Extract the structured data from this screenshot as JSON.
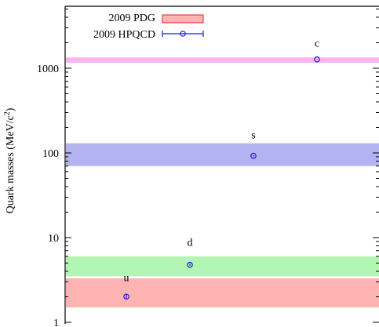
{
  "chart_data": {
    "type": "scatter",
    "title": "",
    "ylabel": "Quark masses (MeV/c²)",
    "xlabel": "",
    "yscale": "log",
    "ylim": [
      1,
      5000
    ],
    "yticks": [
      1,
      10,
      100,
      1000
    ],
    "ytick_labels": [
      "1",
      "10",
      "100",
      "1000"
    ],
    "grid": false,
    "legend_position": "top-left",
    "legend": [
      {
        "label": "2009 PDG",
        "kind": "band"
      },
      {
        "label": "2009 HPQCD",
        "kind": "point-with-errorbar"
      }
    ],
    "colors": {
      "u": "#ffb3b3",
      "d": "#b3f5b3",
      "s": "#b3b3f2",
      "c": "#f7b3f2",
      "point": "#1a1ad9",
      "legend_band_fill": "#ffb3b3",
      "legend_band_stroke": "#e02020"
    },
    "pdg_bands": [
      {
        "quark": "u",
        "low": 1.5,
        "high": 3.3
      },
      {
        "quark": "d",
        "low": 3.5,
        "high": 6.0
      },
      {
        "quark": "s",
        "low": 70,
        "high": 130
      },
      {
        "quark": "c",
        "low": 1160,
        "high": 1340
      }
    ],
    "hpqcd_points": [
      {
        "quark": "u",
        "value": 2.01,
        "err": 0.14
      },
      {
        "quark": "d",
        "value": 4.77,
        "err": 0.15
      },
      {
        "quark": "s",
        "value": 92.4,
        "err": 1.5
      },
      {
        "quark": "c",
        "value": 1273,
        "err": 6
      }
    ]
  }
}
